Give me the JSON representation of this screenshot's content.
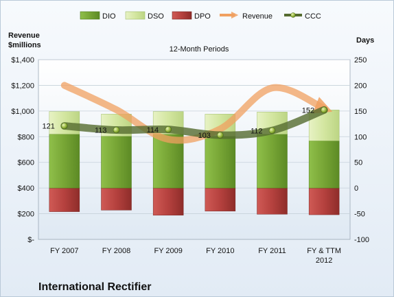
{
  "chart_data": {
    "type": "bar",
    "title": "12-Month Periods",
    "company": "International Rectifier",
    "left_axis": {
      "label_line1": "Revenue",
      "label_line2": "$millions",
      "ylim": [
        0,
        1400
      ],
      "ticks": [
        {
          "value": 0,
          "label": "$-"
        },
        {
          "value": 200,
          "label": "$200"
        },
        {
          "value": 400,
          "label": "$400"
        },
        {
          "value": 600,
          "label": "$600"
        },
        {
          "value": 800,
          "label": "$800"
        },
        {
          "value": 1000,
          "label": "$1,000"
        },
        {
          "value": 1200,
          "label": "$1,200"
        },
        {
          "value": 1400,
          "label": "$1,400"
        }
      ]
    },
    "right_axis": {
      "label": "Days",
      "ylim": [
        -100,
        250
      ],
      "ticks": [
        {
          "value": -100,
          "label": "-100"
        },
        {
          "value": -50,
          "label": "-50"
        },
        {
          "value": 0,
          "label": "0"
        },
        {
          "value": 50,
          "label": "50"
        },
        {
          "value": 100,
          "label": "100"
        },
        {
          "value": 150,
          "label": "150"
        },
        {
          "value": 200,
          "label": "200"
        },
        {
          "value": 250,
          "label": "250"
        }
      ]
    },
    "categories": [
      {
        "line1": "FY 2007",
        "line2": ""
      },
      {
        "line1": "FY 2008",
        "line2": ""
      },
      {
        "line1": "FY 2009",
        "line2": ""
      },
      {
        "line1": "FY 2010",
        "line2": ""
      },
      {
        "line1": "FY 2011",
        "line2": ""
      },
      {
        "line1": "FY & TTM",
        "line2": "2012"
      }
    ],
    "legend": [
      "DIO",
      "DSO",
      "DPO",
      "Revenue",
      "CCC"
    ],
    "series": [
      {
        "name": "DIO",
        "axis": "days",
        "values": [
          105,
          101,
          105,
          101,
          105,
          92
        ]
      },
      {
        "name": "DSO",
        "axis": "days",
        "values": [
          44,
          43,
          44,
          43,
          43,
          60
        ]
      },
      {
        "name": "DPO",
        "axis": "days",
        "values": [
          -46,
          -43,
          -53,
          -45,
          -51,
          -52
        ]
      },
      {
        "name": "Revenue",
        "axis": "revenue",
        "values": [
          1200,
          1010,
          780,
          860,
          1180,
          1020
        ]
      },
      {
        "name": "CCC",
        "axis": "days",
        "values": [
          121,
          113,
          114,
          103,
          112,
          152
        ]
      }
    ],
    "data_labels": [
      "121",
      "113",
      "114",
      "103",
      "112",
      "152"
    ],
    "colors": {
      "DIO": "#7aa83a",
      "DSO": "#d7e8a8",
      "DPO": "#b5413e",
      "Revenue": "#f0a060",
      "CCC": "#556b2f"
    },
    "grid": true,
    "legend_position": "top"
  }
}
